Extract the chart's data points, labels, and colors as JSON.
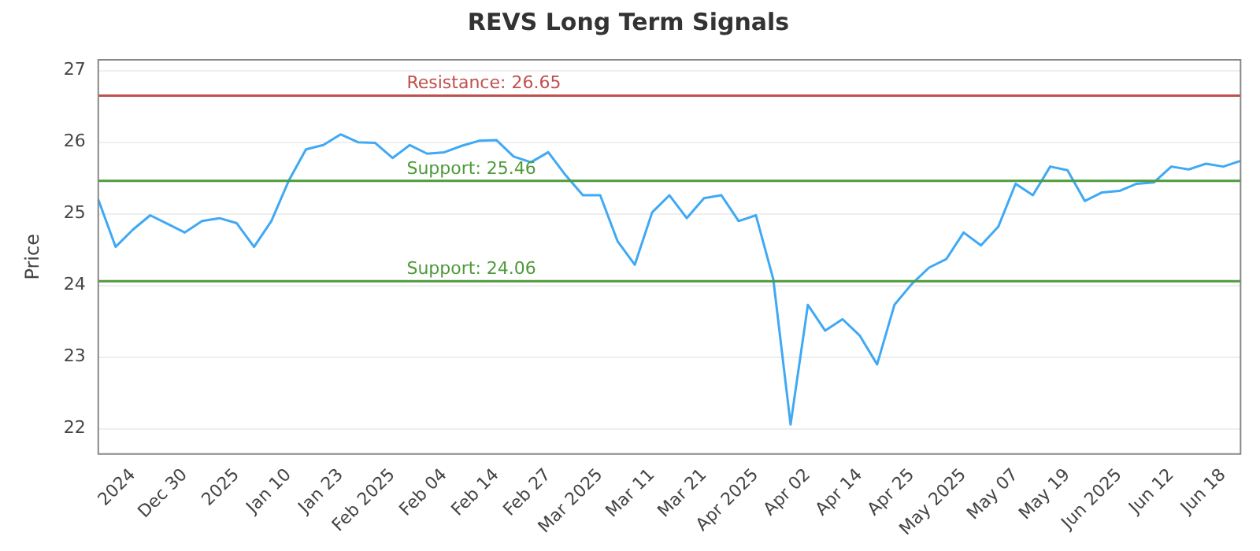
{
  "chart_data": {
    "type": "line",
    "title": "REVS Long Term Signals",
    "ylabel": "Price",
    "categories": [
      null,
      null,
      "2024",
      null,
      null,
      "Dec 30",
      null,
      null,
      "2025",
      null,
      null,
      "Jan 10",
      null,
      null,
      "Jan 23",
      null,
      null,
      "Feb 2025",
      null,
      null,
      "Feb 04",
      null,
      null,
      "Feb 14",
      null,
      null,
      "Feb 27",
      null,
      null,
      "Mar 2025",
      null,
      null,
      "Mar 11",
      null,
      null,
      "Mar 21",
      null,
      null,
      "Apr 2025",
      null,
      null,
      "Apr 02",
      null,
      null,
      "Apr 14",
      null,
      null,
      "Apr 25",
      null,
      null,
      "May 2025",
      null,
      null,
      "May 07",
      null,
      null,
      "May 19",
      null,
      null,
      "Jun 2025",
      null,
      null,
      "Jun 12",
      null,
      null,
      "Jun 18",
      null
    ],
    "series": [
      {
        "color": "#3fa9f5",
        "values": [
          25.2,
          24.54,
          24.78,
          24.98,
          24.86,
          24.74,
          24.9,
          24.94,
          24.87,
          24.54,
          24.9,
          25.46,
          25.9,
          25.96,
          26.11,
          26.0,
          25.99,
          25.78,
          25.96,
          25.84,
          25.86,
          25.95,
          26.02,
          26.03,
          25.8,
          25.72,
          25.86,
          25.54,
          25.26,
          25.26,
          24.62,
          24.29,
          25.02,
          25.26,
          24.94,
          25.22,
          25.26,
          24.9,
          24.98,
          24.09,
          22.06,
          23.73,
          23.37,
          23.53,
          23.3,
          22.9,
          23.73,
          24.02,
          24.25,
          24.37,
          24.74,
          24.56,
          24.82,
          25.42,
          25.26,
          25.66,
          25.61,
          25.18,
          25.3,
          25.32,
          25.42,
          25.44,
          25.66,
          25.62,
          25.7,
          25.66,
          25.74
        ]
      }
    ],
    "ylim": [
      21.65,
      27.15
    ],
    "yticks": [
      22,
      23,
      24,
      25,
      26,
      27
    ],
    "grid": "y",
    "legend": false,
    "marker": "none",
    "line_style": "solid",
    "ref_lines": [
      {
        "axis": "y",
        "value": 26.65,
        "label": "Resistance: 26.65",
        "color": "#c0504d"
      },
      {
        "axis": "y",
        "value": 25.46,
        "label": "Support: 25.46",
        "color": "#4e9a3a"
      },
      {
        "axis": "y",
        "value": 24.06,
        "label": "Support: 24.06",
        "color": "#4e9a3a"
      }
    ]
  }
}
